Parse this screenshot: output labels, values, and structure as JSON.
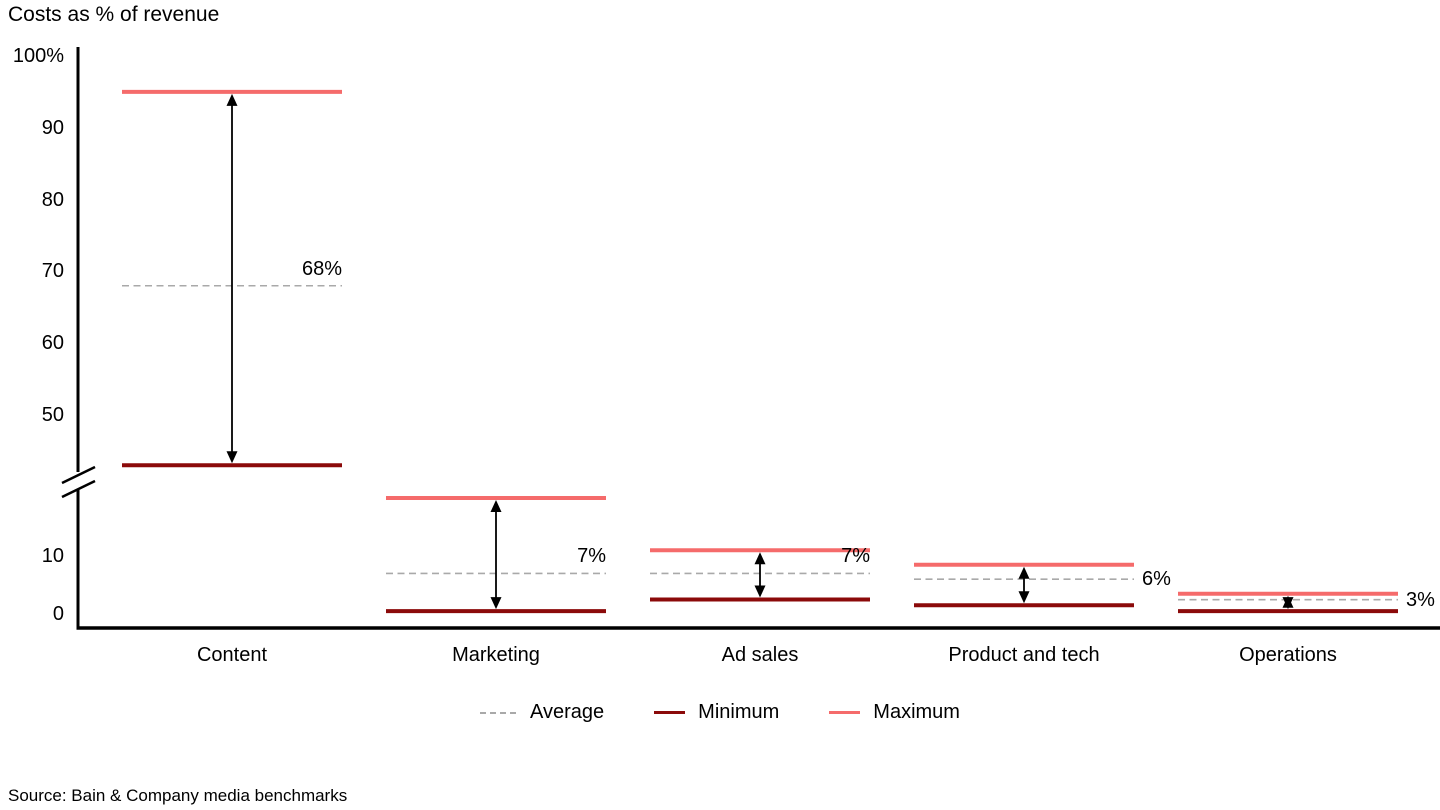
{
  "title": "Costs as % of revenue",
  "source": "Source: Bain & Company media benchmarks",
  "legend": {
    "items": [
      {
        "label": "Average",
        "style": "dashed",
        "color_key": "average"
      },
      {
        "label": "Minimum",
        "style": "solid",
        "color_key": "minimum"
      },
      {
        "label": "Maximum",
        "style": "solid",
        "color_key": "maximum"
      }
    ]
  },
  "colors": {
    "average": "#A9A9A9",
    "minimum": "#8B0A0A",
    "maximum": "#F56B6B",
    "axis": "#000000",
    "text": "#000000"
  },
  "chart_data": {
    "type": "range",
    "title": "Costs as % of revenue",
    "ylabel": "Costs as % of revenue",
    "unit": "%",
    "categories": [
      "Content",
      "Marketing",
      "Ad sales",
      "Product and tech",
      "Operations"
    ],
    "series": [
      {
        "name": "Minimum",
        "values": [
          43,
          0.5,
          2.5,
          1.5,
          0.5
        ]
      },
      {
        "name": "Maximum",
        "values": [
          95,
          20,
          11,
          8.5,
          3.5
        ]
      },
      {
        "name": "Average",
        "values": [
          68,
          7,
          7,
          6,
          3
        ]
      }
    ],
    "average_labels": [
      "68%",
      "7%",
      "7%",
      "6%",
      "3%"
    ],
    "label_placement": [
      "above",
      "above",
      "above",
      "right",
      "right"
    ],
    "y_axis": {
      "upper_ticks_labels": [
        "100%",
        "90",
        "80",
        "70",
        "60",
        "50"
      ],
      "upper_ticks": [
        100,
        90,
        80,
        70,
        60,
        50
      ],
      "lower_ticks": [
        10,
        0
      ],
      "axis_break": true,
      "ylim_lower": [
        0,
        22
      ],
      "ylim_upper": [
        43,
        100
      ]
    },
    "grid": false,
    "legend_position": "bottom"
  }
}
